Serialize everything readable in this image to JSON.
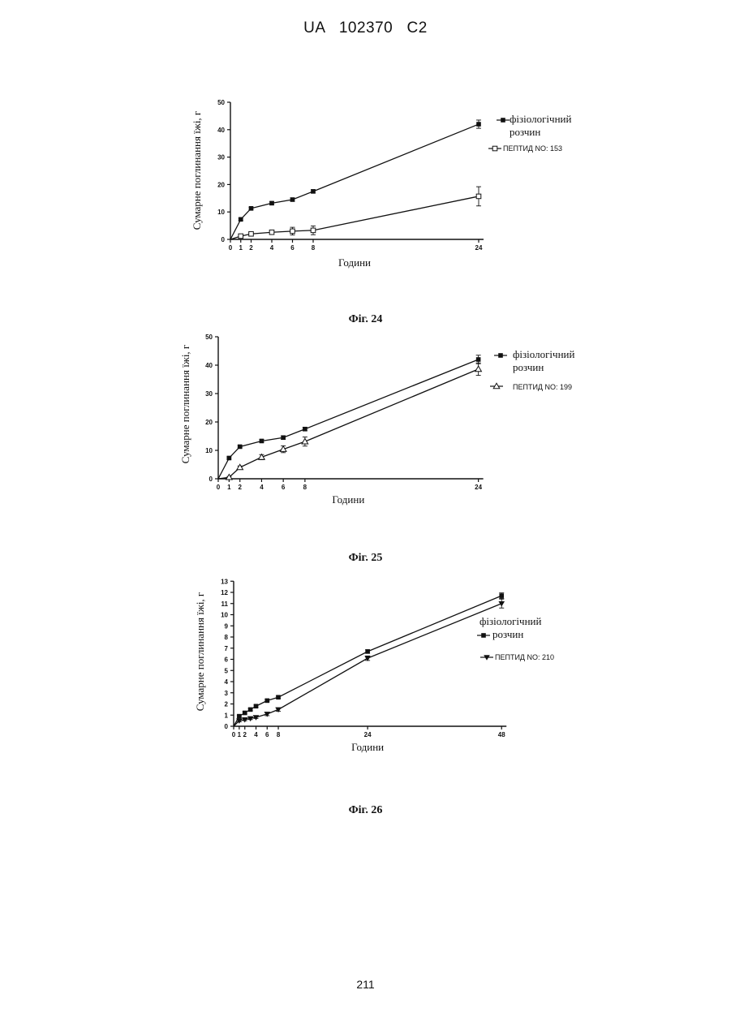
{
  "header": {
    "title": "UA   102370   C2"
  },
  "page_number": "211",
  "figures": [
    "Фіг. 24",
    "Фіг. 25",
    "Фіг. 26"
  ],
  "chart_data": [
    {
      "type": "line",
      "xlabel": "Години",
      "ylabel": "Сумарне поглинання їжі, г",
      "xticks": [
        0,
        1,
        2,
        4,
        6,
        8,
        24
      ],
      "yticks": [
        0,
        10,
        20,
        30,
        40,
        50
      ],
      "xlim": [
        0,
        24
      ],
      "ylim": [
        0,
        50
      ],
      "series": [
        {
          "name": "фізіологічний розчин",
          "marker": "square-filled",
          "x": [
            0,
            1,
            2,
            4,
            6,
            8,
            24
          ],
          "y": [
            0,
            7.3,
            11.3,
            13.2,
            14.5,
            17.5,
            42
          ],
          "err": [
            0,
            0.4,
            0.4,
            0.5,
            0.6,
            0.6,
            1.5
          ]
        },
        {
          "name": "ПЕПТИД NO: 153",
          "marker": "square-open",
          "x": [
            0,
            1,
            2,
            4,
            6,
            8,
            24
          ],
          "y": [
            0,
            1.2,
            2,
            2.6,
            3,
            3.3,
            15.7
          ],
          "err": [
            0,
            0.3,
            0.4,
            0.8,
            1.4,
            1.6,
            3.5
          ]
        }
      ]
    },
    {
      "type": "line",
      "xlabel": "Години",
      "ylabel": "Сумарне поглинання їжі, г",
      "xticks": [
        0,
        1,
        2,
        4,
        6,
        8,
        24
      ],
      "yticks": [
        0,
        10,
        20,
        30,
        40,
        50
      ],
      "xlim": [
        0,
        24
      ],
      "ylim": [
        0,
        50
      ],
      "series": [
        {
          "name": "фізіологічний розчин",
          "marker": "square-filled",
          "x": [
            0,
            1,
            2,
            4,
            6,
            8,
            24
          ],
          "y": [
            0,
            7.3,
            11.3,
            13.3,
            14.5,
            17.5,
            42
          ],
          "err": [
            0,
            0.4,
            0.4,
            0.5,
            0.6,
            0.6,
            1.5
          ]
        },
        {
          "name": "ПЕПТИД NO: 199",
          "marker": "triangle-up-open",
          "x": [
            0,
            1,
            2,
            4,
            6,
            8,
            24
          ],
          "y": [
            0,
            0.5,
            4,
            7.6,
            10.4,
            13.1,
            38.6
          ],
          "err": [
            0,
            0.3,
            0.5,
            0.9,
            1.2,
            1.6,
            2.2
          ]
        }
      ]
    },
    {
      "type": "line",
      "xlabel": "Години",
      "ylabel": "Сумарне поглинання їжі, г",
      "xticks": [
        0,
        1,
        2,
        4,
        6,
        8,
        24,
        48
      ],
      "xtick_labels": [
        "0",
        "1",
        "2",
        "4",
        "6",
        "8",
        "24",
        "48"
      ],
      "yticks": [
        0,
        1,
        2,
        3,
        4,
        5,
        6,
        7,
        8,
        9,
        10,
        11,
        12,
        13
      ],
      "xlim": [
        0,
        48
      ],
      "ylim": [
        0,
        13
      ],
      "series": [
        {
          "name": "фізіологічний розчин",
          "marker": "square-filled",
          "x": [
            0,
            1,
            2,
            3,
            4,
            6,
            8,
            24,
            48
          ],
          "y": [
            0,
            0.9,
            1.2,
            1.5,
            1.8,
            2.3,
            2.6,
            6.7,
            11.7
          ],
          "err": [
            0,
            0.1,
            0.1,
            0.1,
            0.1,
            0.1,
            0.1,
            0.15,
            0.25
          ]
        },
        {
          "name": "ПЕПТИД NO: 210",
          "marker": "triangle-down-filled",
          "x": [
            0,
            1,
            2,
            3,
            4,
            6,
            8,
            24,
            48
          ],
          "y": [
            0,
            0.5,
            0.6,
            0.7,
            0.8,
            1.1,
            1.5,
            6.1,
            11.0
          ],
          "err": [
            0,
            0.1,
            0.1,
            0.1,
            0.1,
            0.15,
            0.15,
            0.2,
            0.4
          ]
        }
      ]
    }
  ]
}
